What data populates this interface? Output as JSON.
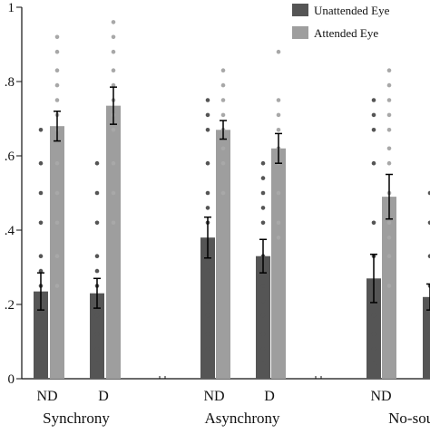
{
  "chart_data": {
    "type": "bar",
    "ylim": [
      0,
      1
    ],
    "y_ticks": [
      {
        "value": 0,
        "label": "0"
      },
      {
        "value": 0.2,
        "label": ".2"
      },
      {
        "value": 0.4,
        "label": ".4"
      },
      {
        "value": 0.6,
        "label": ".6"
      },
      {
        "value": 0.8,
        "label": ".8"
      },
      {
        "value": 1.0,
        "label": "1"
      }
    ],
    "groups": [
      {
        "name": "Synchrony",
        "conditions": [
          "ND",
          "D"
        ]
      },
      {
        "name": "Asynchrony",
        "conditions": [
          "ND",
          "D"
        ]
      },
      {
        "name": "No-sour",
        "conditions": [
          "ND"
        ]
      }
    ],
    "categories": [
      "Synchrony ND",
      "Synchrony D",
      "Asynchrony ND",
      "Asynchrony D",
      "No-sour ND",
      "No-sour D"
    ],
    "series": [
      {
        "name": "Unattended Eye",
        "color": "#555555",
        "dot_color": "#555555",
        "values": [
          0.235,
          0.23,
          0.38,
          0.33,
          0.27,
          0.22
        ],
        "errors": [
          0.05,
          0.04,
          0.055,
          0.045,
          0.065,
          0.035
        ],
        "points": [
          [
            0.04,
            0.08,
            0.12,
            0.17,
            0.21,
            0.25,
            0.29,
            0.33,
            0.42,
            0.5,
            0.58,
            0.67
          ],
          [
            0.04,
            0.08,
            0.12,
            0.17,
            0.21,
            0.25,
            0.29,
            0.33,
            0.42,
            0.5,
            0.58
          ],
          [
            0.08,
            0.12,
            0.17,
            0.21,
            0.29,
            0.33,
            0.42,
            0.46,
            0.5,
            0.58,
            0.67,
            0.71,
            0.75
          ],
          [
            0.04,
            0.08,
            0.12,
            0.17,
            0.21,
            0.25,
            0.33,
            0.42,
            0.46,
            0.5,
            0.54,
            0.58
          ],
          [
            0.04,
            0.08,
            0.12,
            0.17,
            0.21,
            0.25,
            0.33,
            0.42,
            0.58,
            0.67,
            0.71,
            0.75
          ],
          [
            0.04,
            0.08,
            0.12,
            0.17,
            0.21,
            0.25,
            0.33,
            0.42,
            0.5
          ]
        ]
      },
      {
        "name": "Attended Eye",
        "color": "#9e9e9e",
        "dot_color": "#a8a8a8",
        "values": [
          0.68,
          0.735,
          0.67,
          0.62,
          0.49,
          null
        ],
        "errors": [
          0.04,
          0.05,
          0.025,
          0.04,
          0.06,
          null
        ],
        "points": [
          [
            0.25,
            0.33,
            0.42,
            0.5,
            0.58,
            0.67,
            0.71,
            0.75,
            0.79,
            0.83,
            0.88,
            0.92
          ],
          [
            0.42,
            0.5,
            0.58,
            0.67,
            0.71,
            0.75,
            0.79,
            0.83,
            0.88,
            0.92,
            0.96
          ],
          [
            0.5,
            0.58,
            0.62,
            0.67,
            0.71,
            0.75,
            0.79,
            0.83
          ],
          [
            0.38,
            0.42,
            0.5,
            0.58,
            0.62,
            0.67,
            0.71,
            0.75,
            0.88
          ],
          [
            0.25,
            0.33,
            0.38,
            0.42,
            0.5,
            0.58,
            0.62,
            0.67,
            0.71,
            0.75,
            0.79,
            0.83
          ],
          []
        ]
      }
    ],
    "legend": {
      "position": "top-right"
    },
    "grid": false
  }
}
